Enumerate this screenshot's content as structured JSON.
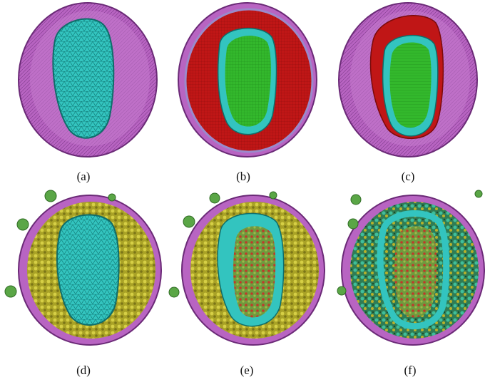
{
  "figure": {
    "panels": [
      {
        "id": "a",
        "caption": "(a)",
        "variant": "capsid"
      },
      {
        "id": "b",
        "caption": "(b)",
        "variant": "cross-section"
      },
      {
        "id": "c",
        "caption": "(c)",
        "variant": "cutaway"
      },
      {
        "id": "d",
        "caption": "(d)",
        "variant": "capsid-with-spikes"
      },
      {
        "id": "e",
        "caption": "(e)",
        "variant": "open-capsid-with-spikes"
      },
      {
        "id": "f",
        "caption": "(f)",
        "variant": "full-interior"
      }
    ],
    "colors": {
      "membrane": "#b45cbf",
      "membrane_dark": "#7b2f86",
      "capsid": "#2fc2bd",
      "capsid_dark": "#138a86",
      "core": "#2fb52a",
      "cross_section": "#c01414",
      "spike": "#b9b12a",
      "glycoprotein": "#5aa646",
      "genome": "#c03a2a"
    }
  }
}
